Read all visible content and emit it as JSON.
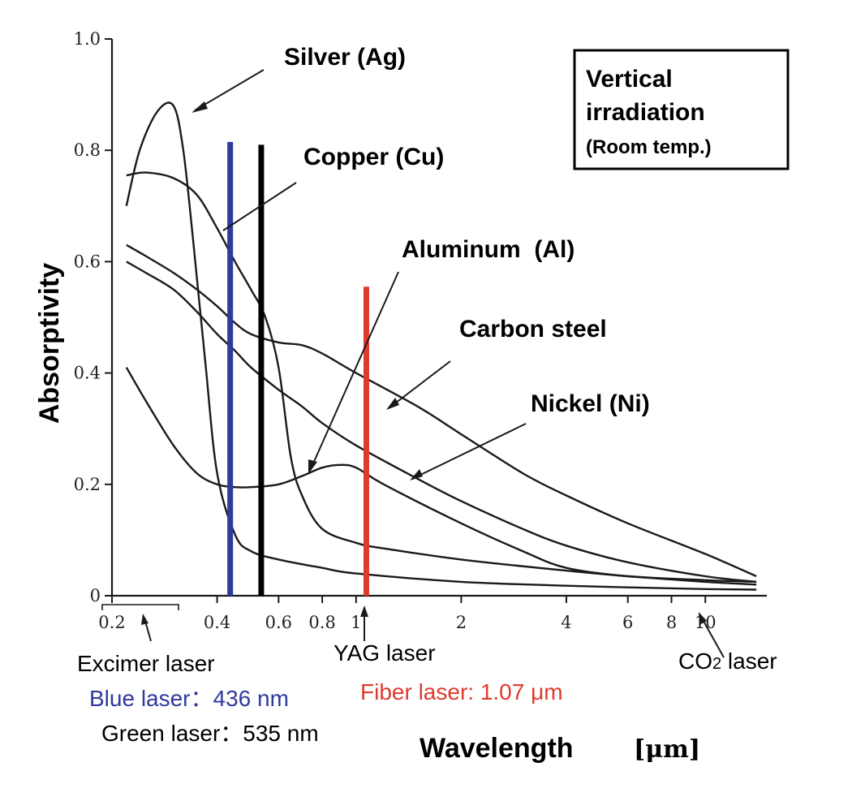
{
  "chart_data": {
    "type": "line",
    "xlabel": "Wavelength",
    "xunit": "[μm]",
    "ylabel": "Absorptivity",
    "x_scale": "log",
    "xlim": [
      0.2,
      15
    ],
    "ylim": [
      0,
      1.0
    ],
    "x_ticks": [
      "0.2",
      "0.4",
      "0.6",
      "0.8",
      "1",
      "2",
      "4",
      "6",
      "8",
      "10"
    ],
    "x_tick_values": [
      0.2,
      0.4,
      0.6,
      0.8,
      1,
      2,
      4,
      6,
      8,
      10
    ],
    "y_ticks": [
      "0",
      "0.2",
      "0.4",
      "0.6",
      "0.8",
      "1.0"
    ],
    "y_tick_values": [
      0,
      0.2,
      0.4,
      0.6,
      0.8,
      1.0
    ],
    "grid": false,
    "series": [
      {
        "name": "Silver (Ag)",
        "x": [
          0.22,
          0.24,
          0.27,
          0.3,
          0.32,
          0.34,
          0.37,
          0.4,
          0.45,
          0.5,
          0.6,
          0.8,
          1.0,
          2.0,
          4.0,
          6.0,
          10.0,
          14.0
        ],
        "y": [
          0.7,
          0.8,
          0.87,
          0.88,
          0.8,
          0.65,
          0.42,
          0.22,
          0.11,
          0.08,
          0.065,
          0.05,
          0.04,
          0.025,
          0.018,
          0.015,
          0.012,
          0.011
        ]
      },
      {
        "name": "Copper (Cu)",
        "x": [
          0.22,
          0.25,
          0.3,
          0.35,
          0.4,
          0.45,
          0.5,
          0.55,
          0.6,
          0.65,
          0.7,
          0.8,
          1.0,
          1.2,
          2.0,
          4.0,
          6.0,
          10.0,
          14.0
        ],
        "y": [
          0.755,
          0.76,
          0.75,
          0.72,
          0.66,
          0.6,
          0.55,
          0.5,
          0.41,
          0.25,
          0.18,
          0.12,
          0.095,
          0.085,
          0.065,
          0.045,
          0.035,
          0.025,
          0.02
        ]
      },
      {
        "name": "Aluminum  (Al)",
        "x": [
          0.22,
          0.25,
          0.3,
          0.35,
          0.4,
          0.45,
          0.5,
          0.6,
          0.7,
          0.8,
          0.9,
          1.0,
          1.2,
          2.0,
          3.0,
          4.0,
          6.0,
          10.0,
          14.0
        ],
        "y": [
          0.41,
          0.35,
          0.27,
          0.22,
          0.2,
          0.195,
          0.195,
          0.2,
          0.215,
          0.23,
          0.235,
          0.23,
          0.2,
          0.13,
          0.08,
          0.05,
          0.035,
          0.028,
          0.025
        ]
      },
      {
        "name": "Carbon steel",
        "x": [
          0.22,
          0.25,
          0.3,
          0.35,
          0.4,
          0.45,
          0.5,
          0.6,
          0.7,
          0.8,
          1.0,
          1.5,
          2.0,
          3.0,
          4.0,
          6.0,
          10.0,
          14.0
        ],
        "y": [
          0.63,
          0.61,
          0.58,
          0.55,
          0.52,
          0.49,
          0.47,
          0.455,
          0.45,
          0.435,
          0.4,
          0.34,
          0.29,
          0.22,
          0.18,
          0.13,
          0.075,
          0.035
        ]
      },
      {
        "name": "Nickel (Ni)",
        "x": [
          0.22,
          0.25,
          0.3,
          0.35,
          0.4,
          0.45,
          0.5,
          0.6,
          0.7,
          0.8,
          1.0,
          1.5,
          2.0,
          3.0,
          4.0,
          6.0,
          10.0,
          14.0
        ],
        "y": [
          0.6,
          0.58,
          0.55,
          0.51,
          0.47,
          0.44,
          0.41,
          0.37,
          0.34,
          0.31,
          0.27,
          0.21,
          0.17,
          0.12,
          0.09,
          0.06,
          0.035,
          0.025
        ]
      }
    ],
    "vertical_lines": [
      {
        "name": "Blue laser",
        "x": 0.436,
        "y_top": 0.815,
        "color": "#2e3a9e"
      },
      {
        "name": "Green laser",
        "x": 0.535,
        "y_top": 0.81,
        "color": "#000000"
      },
      {
        "name": "Fiber laser",
        "x": 1.07,
        "y_top": 0.555,
        "color": "#e03a2f"
      }
    ],
    "curve_labels": {
      "silver": "Silver (Ag)",
      "copper": "Copper (Cu)",
      "aluminum": "Aluminum  (Al)",
      "carbon_steel": "Carbon steel",
      "nickel": "Nickel (Ni)"
    },
    "annotation_box": {
      "line1": "Vertical",
      "line2": "irradiation",
      "line3": "(Room temp.)"
    },
    "laser_labels": {
      "excimer": "Excimer laser",
      "yag": "YAG laser",
      "co2_main": "CO",
      "co2_sub": "2",
      "co2_tail": " laser",
      "blue": "Blue laser：436 nm",
      "fiber": "Fiber laser: 1.07 μm",
      "green": "Green laser：535 nm"
    }
  }
}
